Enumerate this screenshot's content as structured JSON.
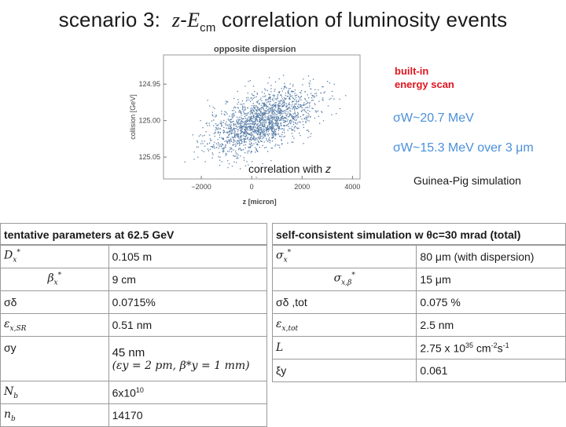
{
  "title": {
    "prefix": "scenario 3:",
    "var_z": "z",
    "dash": "-",
    "var_E": "E",
    "sub_cm": "cm",
    "suffix": "correlation of luminosity events"
  },
  "plot": {
    "title": "opposite dispersion",
    "ylabel": "collision [GeV]",
    "xlabel": "z [micron]",
    "yticks": [
      "125.05",
      "125.00",
      "124.95"
    ],
    "xticks": [
      "−2000",
      "0",
      "2000",
      "4000"
    ],
    "point_color": "#5a7fa8"
  },
  "chart_data": {
    "type": "scatter",
    "title": "opposite dispersion",
    "xlabel": "z [micron]",
    "ylabel": "collision [GeV]",
    "xlim": [
      -3500,
      4300
    ],
    "ylim": [
      124.92,
      125.09
    ],
    "xticks": [
      -2000,
      0,
      2000,
      4000
    ],
    "yticks": [
      124.95,
      125.0,
      125.05
    ],
    "distribution": {
      "x_center": 400,
      "y_center": 125.0,
      "x_sd": 1050,
      "y_sd": 0.022,
      "correlation": 0.55
    }
  },
  "annotations": {
    "builtin_line1": "built-in",
    "builtin_line2": "energy scan",
    "sigma1": "σW~20.7 MeV",
    "sigma2": "σW~15.3 MeV over 3 μm",
    "correlation": "correlation with",
    "correlation_var": "z",
    "guinea_pig": "Guinea-Pig simulation"
  },
  "left_table": {
    "header": "tentative parameters at 62.5 GeV",
    "rows": [
      {
        "label": "D",
        "sub": "x",
        "sup": "*",
        "value": "0.105 m"
      },
      {
        "label": "β",
        "sub": "x",
        "sup": "*",
        "value": "9 cm"
      },
      {
        "label": "σδ",
        "value": "0.0715%"
      },
      {
        "label": "ε",
        "sub": "x,SR",
        "value": "0.51 nm"
      },
      {
        "label": "σy",
        "value": "45 nm",
        "value2": "(εy = 2 pm, β*y = 1 mm)"
      },
      {
        "label": "N",
        "sub": "b",
        "value": "6x10",
        "value_sup": "10"
      },
      {
        "label": "n",
        "sub": "b",
        "value": "14170"
      }
    ]
  },
  "right_table": {
    "header": "self-consistent simulation w θc=30 mrad (total)",
    "rows": [
      {
        "label": "σ",
        "sub": "x",
        "sup": "*",
        "value": "80 μm (with dispersion)"
      },
      {
        "label": "σ",
        "sub": "x,β",
        "sup": "*",
        "value": "15 μm"
      },
      {
        "label": "σδ ,tot",
        "value": "0.075 %"
      },
      {
        "label": "ε",
        "sub": "x,tot",
        "value": "2.5 nm"
      },
      {
        "label": "L",
        "value": "2.75 x 10",
        "sup1": "35",
        "mid": " cm",
        "sup2": "-2",
        "mid2": "s",
        "sup3": "-1"
      },
      {
        "label": "ξy",
        "value": "0.061"
      }
    ]
  }
}
